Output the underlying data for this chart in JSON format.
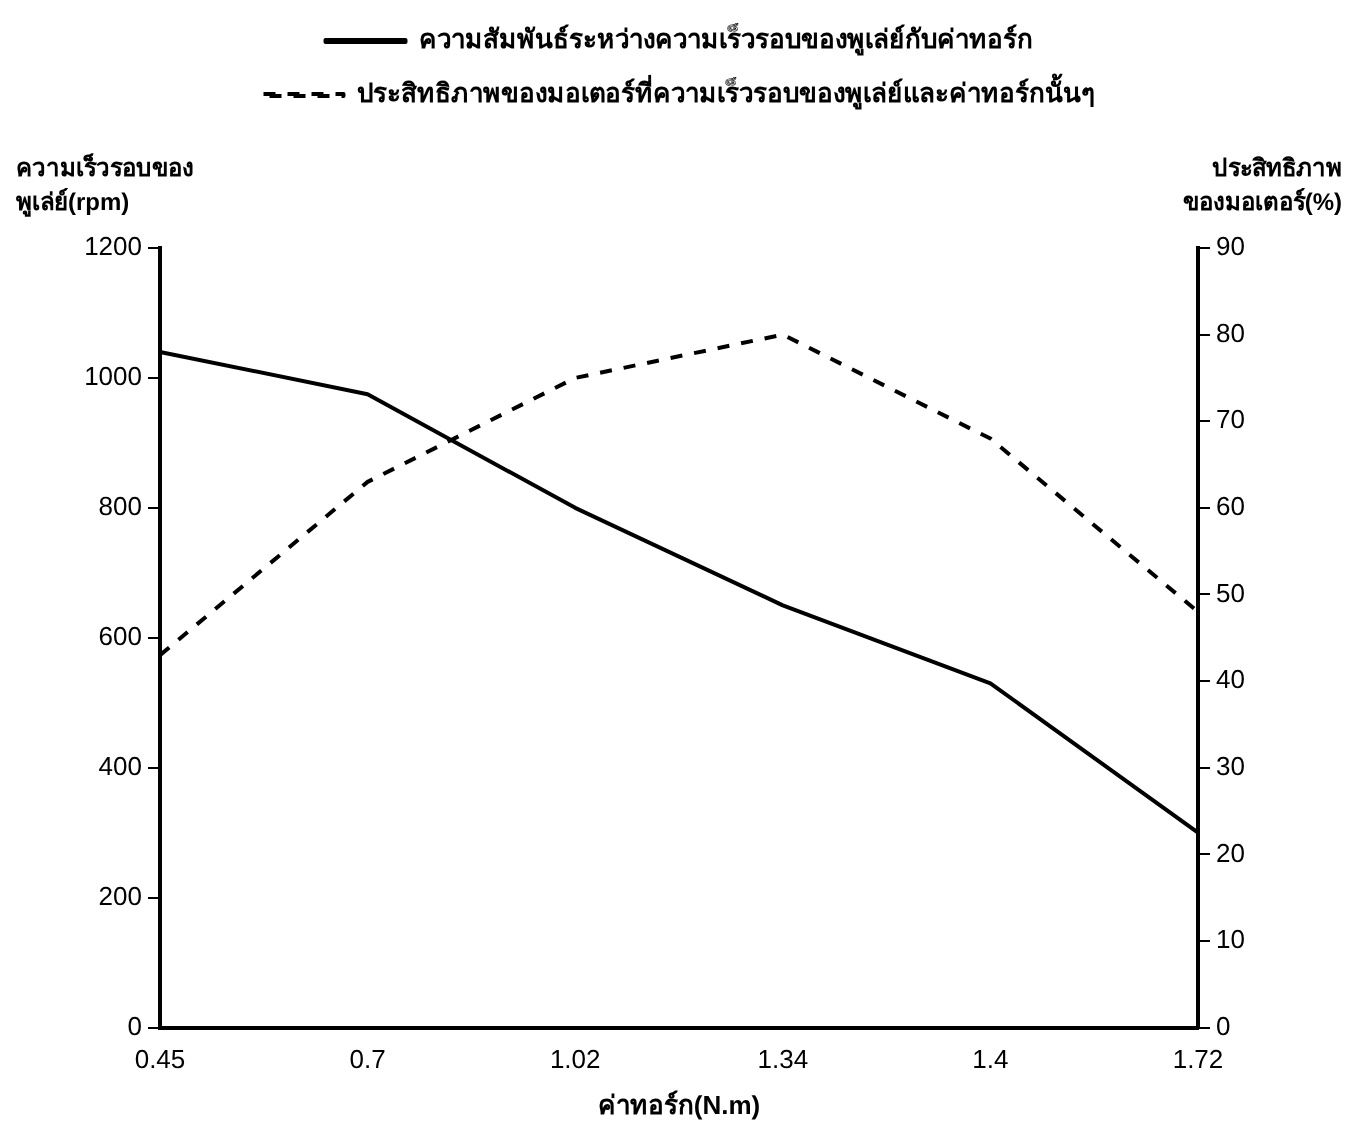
{
  "chart_data": {
    "type": "line",
    "xlabel": "ค่าทอร์ก(N.m)",
    "ylabel": "ความเร็วรอบของ พูเล่ย์(rpm)",
    "y2label": "ประสิทธิภาพ ของมอเตอร์(%)",
    "categories": [
      "0.45",
      "0.7",
      "1.02",
      "1.34",
      "1.4",
      "1.72"
    ],
    "series": [
      {
        "name": "ความสัมพันธ์ระหว่างความเร็วรอบของพูเล่ย์กับค่าทอร์ก",
        "color": "#000000",
        "line_style": "solid",
        "values": [
          1040,
          975,
          800,
          650,
          530,
          300
        ]
      },
      {
        "name": "ประสิทธิภาพของมอเตอร์ที่ความเร็วรอบของพูเล่ย์และค่าทอร์กนั้นๆ",
        "color": "#000000",
        "line_style": "dashed",
        "axis": "y2",
        "values": [
          43,
          63,
          75,
          80,
          68,
          48
        ]
      }
    ],
    "ylim": [
      0,
      1200
    ],
    "yticks": [
      0,
      200,
      400,
      600,
      800,
      1000,
      1200
    ],
    "y2lim": [
      0,
      90
    ],
    "y2ticks": [
      0,
      10,
      20,
      30,
      40,
      50,
      60,
      70,
      80,
      90
    ],
    "grid": false,
    "legend": "top",
    "marker": "none"
  }
}
